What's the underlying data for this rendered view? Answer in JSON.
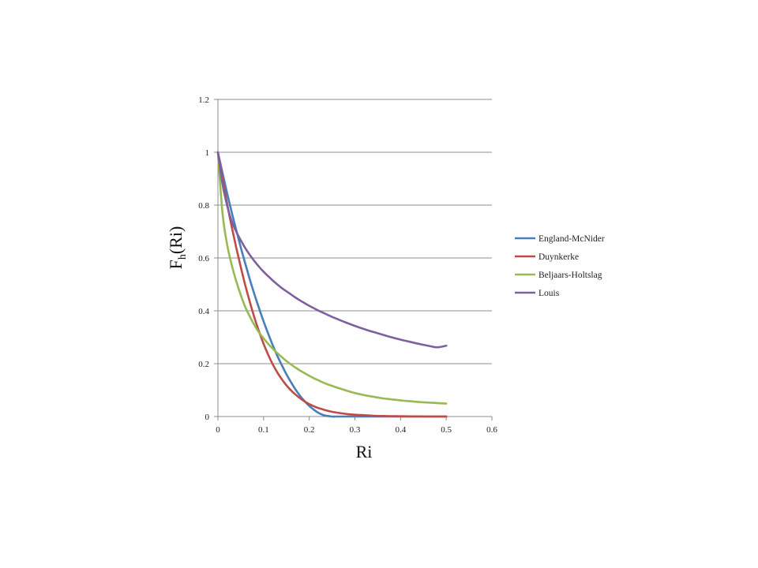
{
  "chart_data": {
    "type": "line",
    "title": "",
    "xlabel": "Ri",
    "ylabel": {
      "main": "F",
      "sub": "h",
      "rest": "(Ri)"
    },
    "xlim": [
      0,
      0.6
    ],
    "ylim": [
      0,
      1.2
    ],
    "xticks": [
      "0",
      "0.1",
      "0.2",
      "0.3",
      "0.4",
      "0.5",
      "0.6"
    ],
    "yticks": [
      "0",
      "0.2",
      "0.4",
      "0.6",
      "0.8",
      "1",
      "1.2"
    ],
    "grid": "horizontal",
    "legend_position": "right",
    "x": [
      0,
      0.01,
      0.02,
      0.03,
      0.04,
      0.05,
      0.06,
      0.07,
      0.08,
      0.09,
      0.1,
      0.11,
      0.12,
      0.13,
      0.14,
      0.15,
      0.16,
      0.17,
      0.18,
      0.19,
      0.2,
      0.21,
      0.22,
      0.23,
      0.24,
      0.25,
      0.26,
      0.28,
      0.3,
      0.32,
      0.34,
      0.36,
      0.38,
      0.4,
      0.42,
      0.44,
      0.46,
      0.48,
      0.5
    ],
    "series": [
      {
        "name": "England-McNider",
        "color": "#4a7ebb",
        "values": [
          1.0,
          0.922,
          0.846,
          0.774,
          0.706,
          0.64,
          0.578,
          0.518,
          0.462,
          0.41,
          0.36,
          0.314,
          0.27,
          0.23,
          0.194,
          0.16,
          0.13,
          0.102,
          0.078,
          0.058,
          0.04,
          0.026,
          0.014,
          0.006,
          0.002,
          0.0,
          0.0,
          0.0,
          0.0,
          0.0,
          0.0,
          0.0,
          0.0,
          0.0,
          0.0,
          0.0,
          0.0,
          0.0,
          0.0
        ]
      },
      {
        "name": "Duynkerke",
        "color": "#be4b48",
        "values": [
          1.0,
          0.9,
          0.806,
          0.72,
          0.64,
          0.566,
          0.496,
          0.433,
          0.374,
          0.322,
          0.275,
          0.234,
          0.198,
          0.167,
          0.141,
          0.118,
          0.099,
          0.083,
          0.069,
          0.057,
          0.047,
          0.039,
          0.032,
          0.027,
          0.022,
          0.018,
          0.015,
          0.01,
          0.007,
          0.005,
          0.003,
          0.002,
          0.0015,
          0.001,
          0.0007,
          0.0005,
          0.0003,
          0.0002,
          0.0001
        ]
      },
      {
        "name": "Beljaars-Holtslag",
        "color": "#98b954",
        "values": [
          1.0,
          0.77,
          0.652,
          0.575,
          0.513,
          0.46,
          0.414,
          0.378,
          0.346,
          0.318,
          0.296,
          0.275,
          0.257,
          0.24,
          0.225,
          0.21,
          0.197,
          0.185,
          0.174,
          0.164,
          0.154,
          0.145,
          0.137,
          0.129,
          0.122,
          0.116,
          0.11,
          0.099,
          0.089,
          0.081,
          0.075,
          0.069,
          0.065,
          0.061,
          0.058,
          0.055,
          0.053,
          0.051,
          0.049
        ]
      },
      {
        "name": "Louis",
        "color": "#7d60a0",
        "values": [
          1.0,
          0.88,
          0.8,
          0.74,
          0.7,
          0.667,
          0.637,
          0.611,
          0.588,
          0.567,
          0.548,
          0.531,
          0.515,
          0.5,
          0.486,
          0.474,
          0.462,
          0.45,
          0.439,
          0.429,
          0.419,
          0.41,
          0.401,
          0.393,
          0.385,
          0.377,
          0.37,
          0.356,
          0.343,
          0.331,
          0.32,
          0.31,
          0.3,
          0.291,
          0.283,
          0.275,
          0.268,
          0.262,
          0.268
        ]
      }
    ]
  }
}
